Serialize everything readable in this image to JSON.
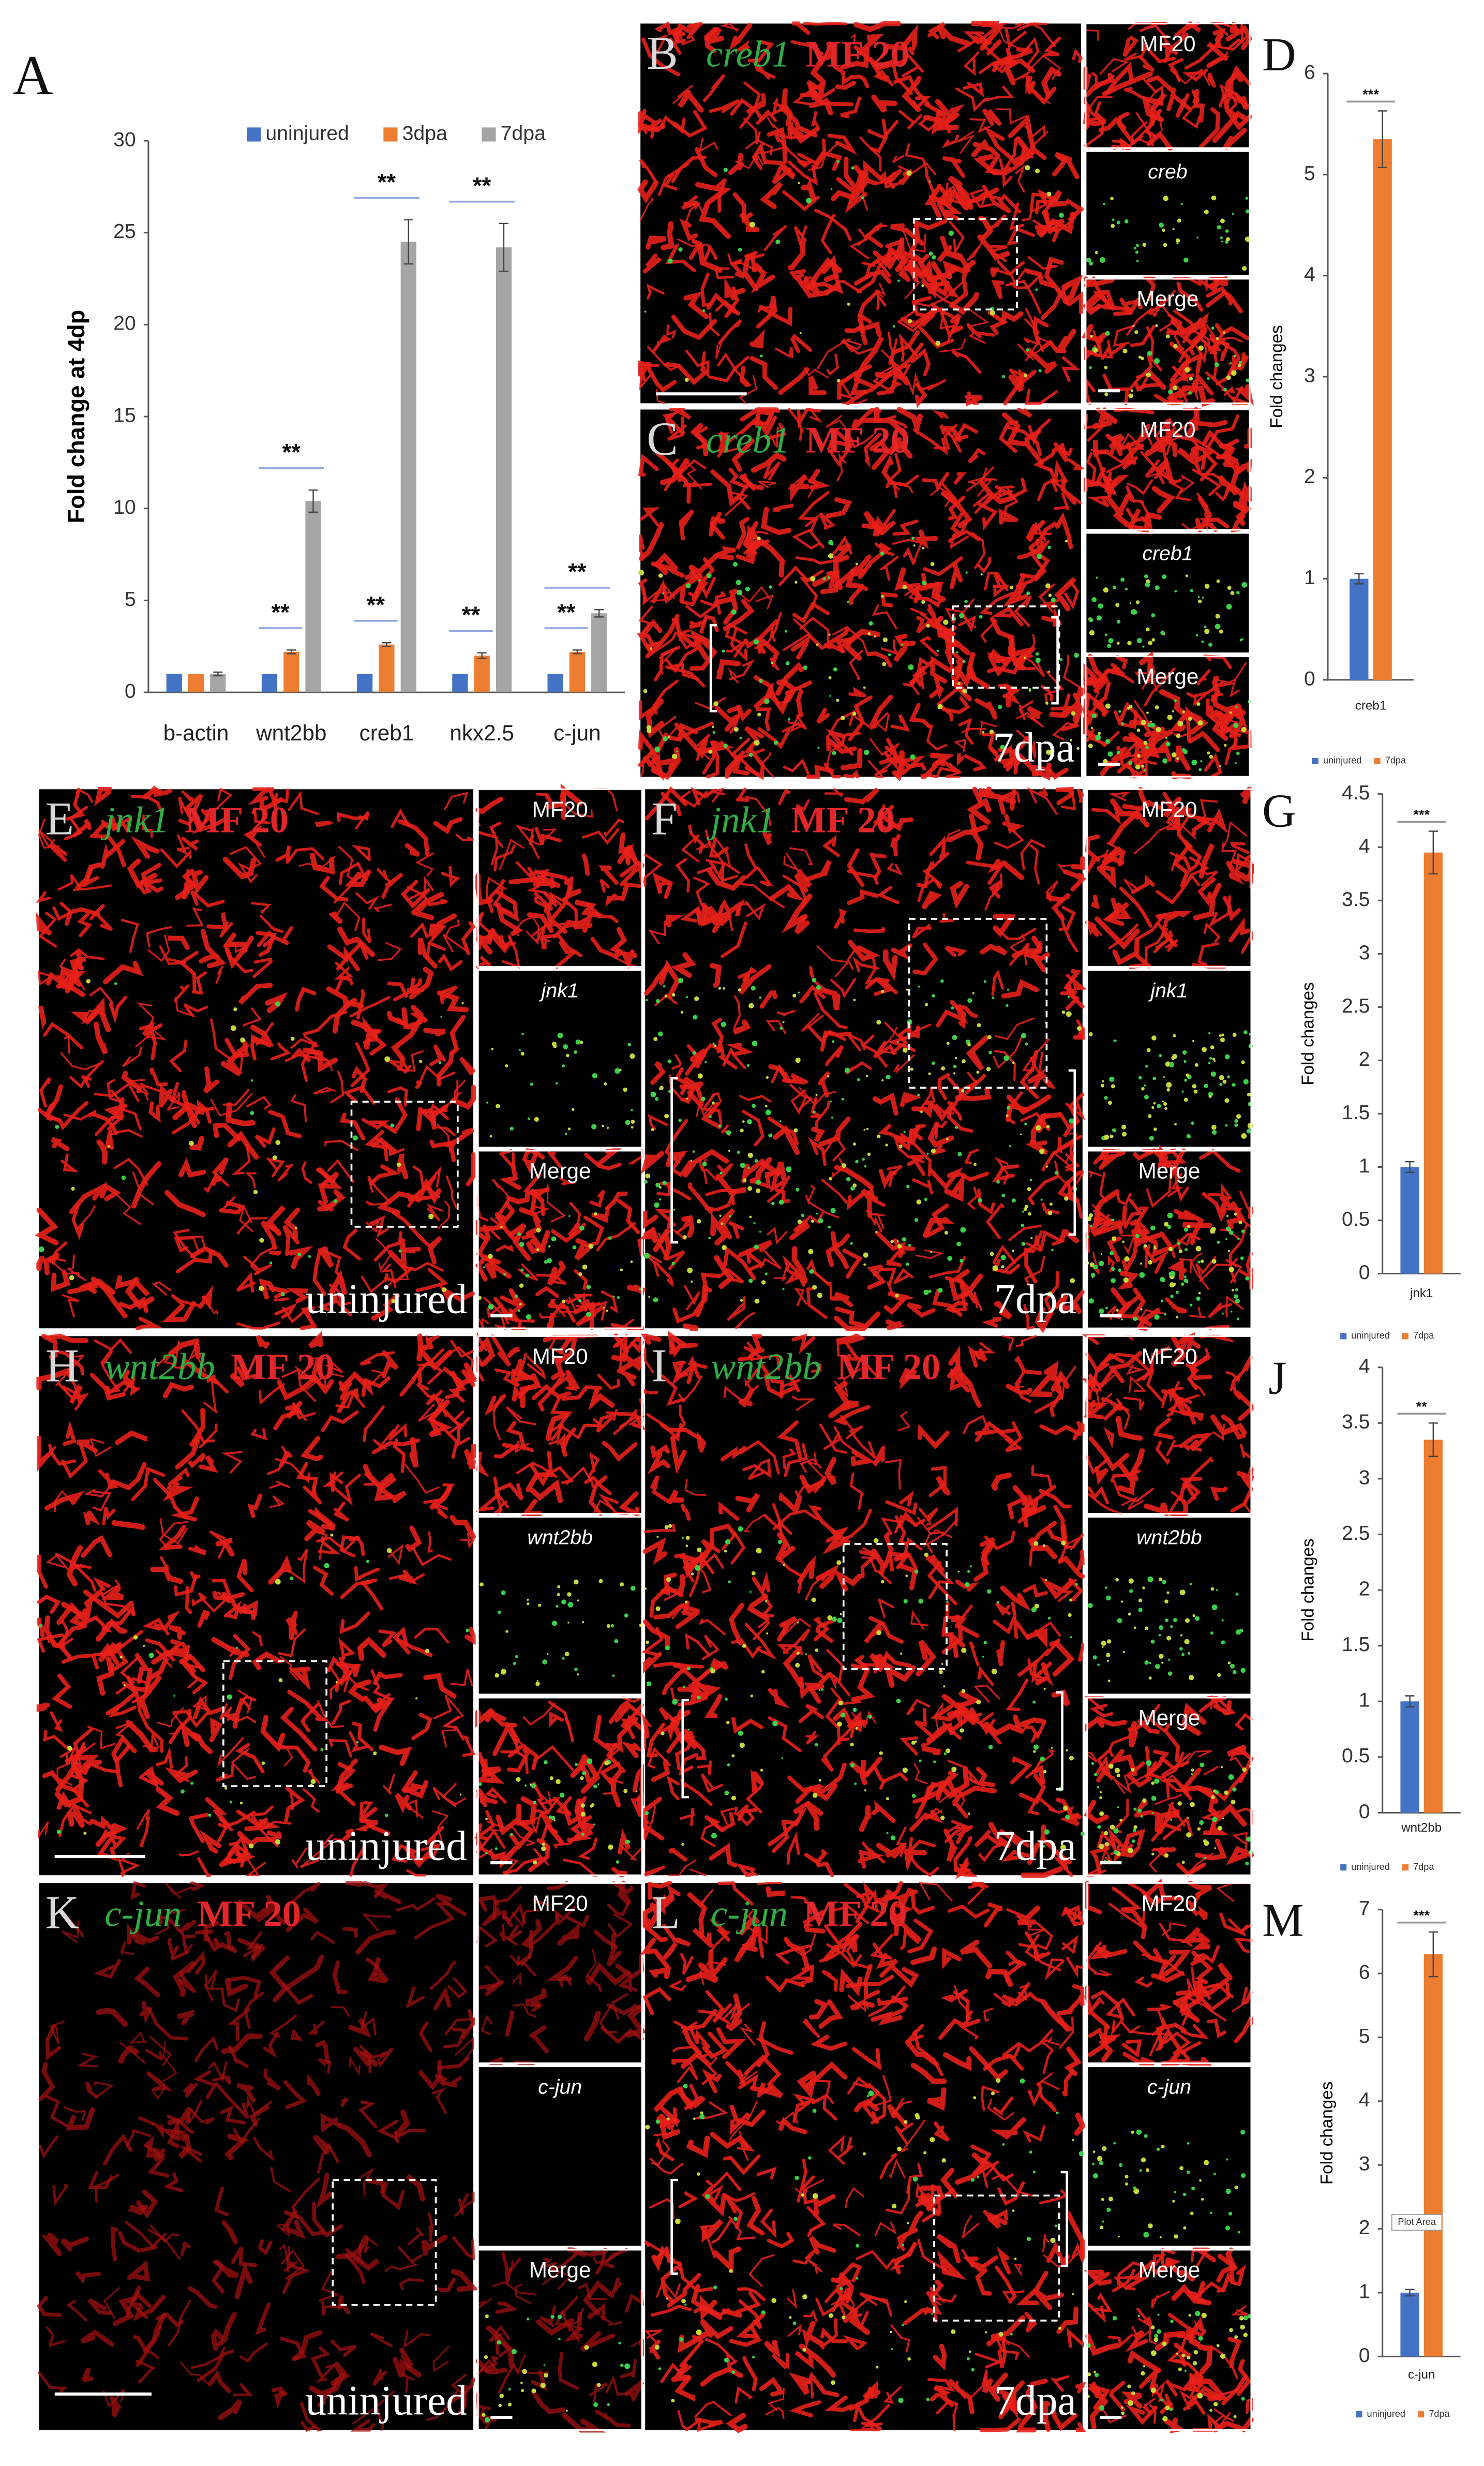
{
  "chart_data": [
    {
      "type": "bar",
      "panel_label": "A",
      "y_label": "Fold change at 4dp",
      "categories": [
        "b-actin",
        "wnt2bb",
        "creb1",
        "nkx2.5",
        "c-jun"
      ],
      "series": [
        {
          "name": "uninjured",
          "color": "#4472c4",
          "values": [
            1,
            1,
            1,
            1,
            1
          ]
        },
        {
          "name": "3dpa",
          "color": "#ed7d31",
          "values": [
            1,
            2.2,
            2.6,
            2,
            2.2
          ],
          "errors": [
            null,
            0.1,
            0.1,
            0.15,
            0.1
          ],
          "significance": [
            null,
            "**",
            "**",
            "**",
            "**"
          ]
        },
        {
          "name": "7dpa",
          "color": "#a5a5a5",
          "values": [
            1,
            10.4,
            24.5,
            24.2,
            4.3
          ],
          "errors": [
            0.1,
            0.6,
            1.2,
            1.3,
            0.2
          ],
          "significance": [
            null,
            "**",
            "**",
            "**",
            "**"
          ]
        }
      ],
      "ylim": [
        0,
        30
      ],
      "yticks": [
        0,
        5,
        10,
        15,
        20,
        25,
        30
      ],
      "legend": "top"
    },
    {
      "type": "bar",
      "panel_label": "D",
      "y_label": "Fold changes",
      "categories": [
        "creb1"
      ],
      "series": [
        {
          "name": "uninjured",
          "color": "#4472c4",
          "values": [
            1
          ],
          "errors": [
            0.05
          ]
        },
        {
          "name": "7dpa",
          "color": "#ed7d31",
          "values": [
            5.35
          ],
          "errors": [
            0.28
          ],
          "significance": [
            "***"
          ]
        }
      ],
      "ylim": [
        0,
        6
      ],
      "yticks": [
        0,
        1,
        2,
        3,
        4,
        5,
        6
      ],
      "legend": "bottom"
    },
    {
      "type": "bar",
      "panel_label": "G",
      "y_label": "Fold changes",
      "categories": [
        "jnk1"
      ],
      "series": [
        {
          "name": "uninjured",
          "color": "#4472c4",
          "values": [
            1
          ],
          "errors": [
            0.05
          ]
        },
        {
          "name": "7dpa",
          "color": "#ed7d31",
          "values": [
            3.95
          ],
          "errors": [
            0.2
          ],
          "significance": [
            "***"
          ]
        }
      ],
      "ylim": [
        0,
        4.5
      ],
      "yticks": [
        0,
        0.5,
        1,
        1.5,
        2,
        2.5,
        3,
        3.5,
        4,
        4.5
      ],
      "legend": "bottom"
    },
    {
      "type": "bar",
      "panel_label": "J",
      "y_label": "Fold changes",
      "categories": [
        "wnt2bb"
      ],
      "series": [
        {
          "name": "uninjured",
          "color": "#4472c4",
          "values": [
            1
          ],
          "errors": [
            0.05
          ]
        },
        {
          "name": "7dpa",
          "color": "#ed7d31",
          "values": [
            3.35
          ],
          "errors": [
            0.15
          ],
          "significance": [
            "**"
          ]
        }
      ],
      "ylim": [
        0,
        4
      ],
      "yticks": [
        0,
        0.5,
        1,
        1.5,
        2,
        2.5,
        3,
        3.5,
        4
      ],
      "legend": "bottom"
    },
    {
      "type": "bar",
      "panel_label": "M",
      "y_label": "Fold changes",
      "categories": [
        "c-jun"
      ],
      "annotation": "Plot Area",
      "series": [
        {
          "name": "uninjured",
          "color": "#4472c4",
          "values": [
            1
          ],
          "errors": [
            0.05
          ]
        },
        {
          "name": "7dpa",
          "color": "#ed7d31",
          "values": [
            6.3
          ],
          "errors": [
            0.35
          ],
          "significance": [
            "***"
          ]
        }
      ],
      "ylim": [
        0,
        7
      ],
      "yticks": [
        0,
        1,
        2,
        3,
        4,
        5,
        6,
        7
      ],
      "legend": "bottom"
    }
  ],
  "panels": [
    {
      "label": "B",
      "gene": "creb1",
      "marker": "MF 20",
      "insets": [
        "MF20",
        "creb",
        "Merge"
      ]
    },
    {
      "label": "C",
      "gene": "creb1",
      "marker": "MF 20",
      "condition": "7dpa",
      "insets": [
        "MF20",
        "creb1",
        "Merge"
      ]
    },
    {
      "label": "E",
      "gene": "jnk1",
      "marker": "MF 20",
      "condition": "uninjured",
      "insets": [
        "MF20",
        "jnk1",
        "Merge"
      ]
    },
    {
      "label": "F",
      "gene": "jnk1",
      "marker": "MF 20",
      "condition": "7dpa",
      "insets": [
        "MF20",
        "jnk1",
        "Merge"
      ]
    },
    {
      "label": "H",
      "gene": "wnt2bb",
      "marker": "MF 20",
      "condition": "uninjured",
      "insets": [
        "MF20",
        "wnt2bb"
      ]
    },
    {
      "label": "I",
      "gene": "wnt2bb",
      "marker": "MF 20",
      "condition": "7dpa",
      "insets": [
        "MF20",
        "wnt2bb",
        "Merge"
      ]
    },
    {
      "label": "K",
      "gene": "c-jun",
      "marker": "MF 20",
      "condition": "uninjured",
      "insets": [
        "MF20",
        "c-jun",
        "Merge"
      ]
    },
    {
      "label": "L",
      "gene": "c-jun",
      "marker": "MF 20",
      "condition": "7dpa",
      "insets": [
        "MF20",
        "c-jun",
        "Merge"
      ]
    }
  ]
}
